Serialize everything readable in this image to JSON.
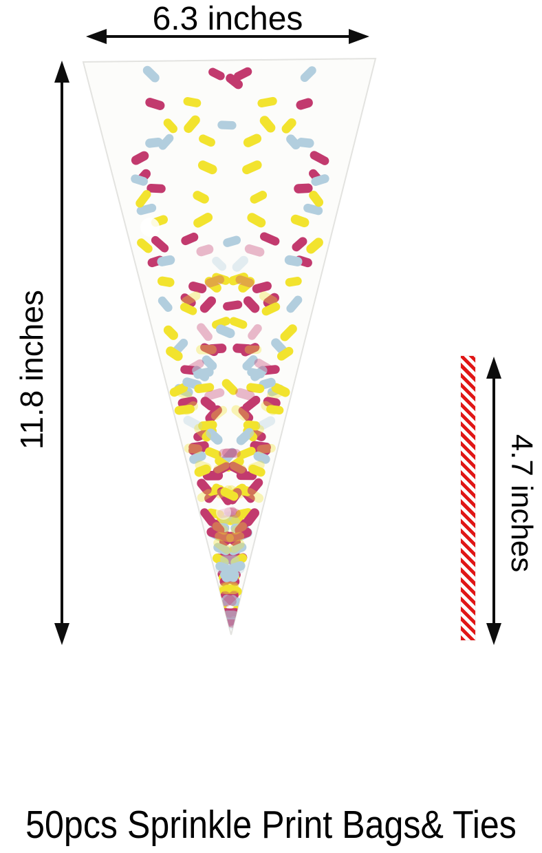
{
  "dimensions": {
    "bag_width": "6.3 inches",
    "bag_height": "11.8 inches",
    "tie_length": "4.7 inches"
  },
  "caption": "50pcs Sprinkle Print Bags& Ties",
  "colors": {
    "sprinkle_yellow": "#f2e32e",
    "sprinkle_magenta": "#c23a6e",
    "sprinkle_blue": "#b2cede",
    "tie_red": "#e01616",
    "tie_white": "#ffffff",
    "arrow_black": "#0d0d0d",
    "bag_film": "#fcfcfa",
    "bag_edge": "#e3e3e0"
  },
  "bag": {
    "shape": "cone",
    "pattern": "sprinkle-print"
  }
}
